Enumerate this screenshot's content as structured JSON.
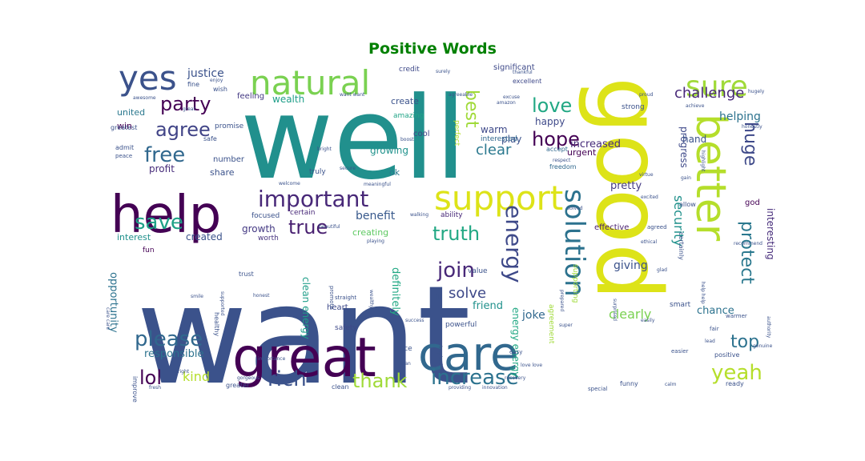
{
  "figure": {
    "title": "Positive Words"
  },
  "palette": {
    "title_color": "#008000",
    "background": "#ffffff"
  },
  "words": [
    {
      "text": "want",
      "color": "#3b528b"
    },
    {
      "text": "well",
      "color": "#21908d"
    },
    {
      "text": "good",
      "color": "#dde318"
    },
    {
      "text": "great",
      "color": "#440154"
    },
    {
      "text": "care",
      "color": "#31688e"
    },
    {
      "text": "help",
      "color": "#440154"
    },
    {
      "text": "better",
      "color": "#b5de2b"
    },
    {
      "text": "support",
      "color": "#dde318"
    },
    {
      "text": "natural",
      "color": "#7ad151"
    },
    {
      "text": "yes",
      "color": "#3b528b"
    },
    {
      "text": "important",
      "color": "#482878"
    },
    {
      "text": "solution",
      "color": "#2c728e"
    },
    {
      "text": "sure",
      "color": "#a0da39"
    },
    {
      "text": "energy",
      "color": "#3e4989"
    },
    {
      "text": "increase",
      "color": "#2c728e"
    },
    {
      "text": "rich",
      "color": "#3b528b"
    },
    {
      "text": "yeah",
      "color": "#b5de2b"
    },
    {
      "text": "thank",
      "color": "#a0da39"
    },
    {
      "text": "truth",
      "color": "#22a884"
    },
    {
      "text": "please",
      "color": "#31688e"
    },
    {
      "text": "join",
      "color": "#482878"
    },
    {
      "text": "save",
      "color": "#1fa187"
    },
    {
      "text": "free",
      "color": "#31688e"
    },
    {
      "text": "party",
      "color": "#440154"
    },
    {
      "text": "agree",
      "color": "#414487"
    },
    {
      "text": "love",
      "color": "#22a884"
    },
    {
      "text": "hope",
      "color": "#440154"
    },
    {
      "text": "huge",
      "color": "#3e4989"
    },
    {
      "text": "protect",
      "color": "#2a788e"
    },
    {
      "text": "best",
      "color": "#a0da39"
    },
    {
      "text": "lol",
      "color": "#440154"
    },
    {
      "text": "top",
      "color": "#2c728e"
    },
    {
      "text": "solve",
      "color": "#3e4989"
    },
    {
      "text": "true",
      "color": "#481f70"
    },
    {
      "text": "security",
      "color": "#21918c"
    },
    {
      "text": "clear",
      "color": "#2a788e"
    },
    {
      "text": "challenge",
      "color": "#482878"
    },
    {
      "text": "kind",
      "color": "#b5de2b"
    },
    {
      "text": "joke",
      "color": "#31688e"
    },
    {
      "text": "justice",
      "color": "#3b528b"
    },
    {
      "text": "responsible",
      "color": "#2c728e"
    },
    {
      "text": "opportunity",
      "color": "#2c728e"
    },
    {
      "text": "interesting",
      "color": "#472d7b"
    },
    {
      "text": "helping",
      "color": "#2c728e"
    },
    {
      "text": "progress",
      "color": "#3e4989"
    },
    {
      "text": "growing",
      "color": "#20928c"
    },
    {
      "text": "benefit",
      "color": "#38598c"
    },
    {
      "text": "giving",
      "color": "#3b528b"
    },
    {
      "text": "clearly",
      "color": "#7ad151"
    },
    {
      "text": "definitely",
      "color": "#22a884"
    },
    {
      "text": "effective",
      "color": "#481f70"
    },
    {
      "text": "increased",
      "color": "#472c7a"
    },
    {
      "text": "chance",
      "color": "#2c728e"
    },
    {
      "text": "created",
      "color": "#3b528b"
    },
    {
      "text": "growth",
      "color": "#443983"
    },
    {
      "text": "creating",
      "color": "#5ec962"
    },
    {
      "text": "pretty",
      "color": "#443a83"
    },
    {
      "text": "friend",
      "color": "#21918c"
    },
    {
      "text": "warm",
      "color": "#3e4989"
    },
    {
      "text": "play",
      "color": "#3b528b"
    },
    {
      "text": "happy",
      "color": "#3e4989"
    },
    {
      "text": "wealth",
      "color": "#1f9e89"
    },
    {
      "text": "create",
      "color": "#3b528b"
    },
    {
      "text": "profit",
      "color": "#472c7a"
    },
    {
      "text": "share",
      "color": "#3b528b"
    },
    {
      "text": "number",
      "color": "#3b528b"
    },
    {
      "text": "interest",
      "color": "#21918c"
    },
    {
      "text": "united",
      "color": "#2a788e"
    },
    {
      "text": "win",
      "color": "#440154"
    },
    {
      "text": "clean energy",
      "color": "#1f9e89"
    },
    {
      "text": "energy energy",
      "color": "#22a884"
    },
    {
      "text": "urgent",
      "color": "#440154"
    },
    {
      "text": "god",
      "color": "#440154"
    },
    {
      "text": "hand",
      "color": "#3b528b"
    },
    {
      "text": "feeling",
      "color": "#443983"
    },
    {
      "text": "amazing",
      "color": "#20a486"
    },
    {
      "text": "cool",
      "color": "#414487"
    },
    {
      "text": "interested",
      "color": "#31688e"
    },
    {
      "text": "ability",
      "color": "#482878"
    },
    {
      "text": "ok",
      "color": "#2a788e"
    },
    {
      "text": "truly",
      "color": "#3b528b"
    },
    {
      "text": "focused",
      "color": "#3b528b"
    },
    {
      "text": "certain",
      "color": "#482878"
    },
    {
      "text": "worth",
      "color": "#46337f"
    },
    {
      "text": "fun",
      "color": "#440154"
    },
    {
      "text": "credit",
      "color": "#3e4989"
    },
    {
      "text": "significant",
      "color": "#3e4989"
    },
    {
      "text": "excellent",
      "color": "#3e4989"
    },
    {
      "text": "perfect",
      "color": "#b5de2b"
    },
    {
      "text": "strong",
      "color": "#3b528b"
    },
    {
      "text": "freedom",
      "color": "#31688e"
    },
    {
      "text": "accept",
      "color": "#31688e"
    },
    {
      "text": "allow",
      "color": "#3b528b"
    },
    {
      "text": "smart",
      "color": "#3b528b"
    },
    {
      "text": "heart",
      "color": "#3e4989"
    },
    {
      "text": "safety",
      "color": "#3e4989"
    },
    {
      "text": "powerful",
      "color": "#3b528b"
    },
    {
      "text": "nice",
      "color": "#3b528b"
    },
    {
      "text": "agreed",
      "color": "#3b528b"
    },
    {
      "text": "value",
      "color": "#3b528b"
    },
    {
      "text": "promise",
      "color": "#3b528b"
    },
    {
      "text": "admit",
      "color": "#3b528b"
    },
    {
      "text": "peace",
      "color": "#3b528b"
    },
    {
      "text": "greatest",
      "color": "#3b528b"
    },
    {
      "text": "safe",
      "color": "#3b528b"
    },
    {
      "text": "fine",
      "color": "#3b528b"
    },
    {
      "text": "wish",
      "color": "#3b528b"
    },
    {
      "text": "supporting",
      "color": "#a0da39"
    },
    {
      "text": "agreement",
      "color": "#a0da39"
    },
    {
      "text": "certainly",
      "color": "#3b528b"
    },
    {
      "text": "healthy",
      "color": "#3b528b"
    },
    {
      "text": "improve",
      "color": "#3b528b"
    },
    {
      "text": "trust",
      "color": "#3b528b"
    },
    {
      "text": "funny",
      "color": "#3b528b"
    },
    {
      "text": "special",
      "color": "#3b528b"
    },
    {
      "text": "ready",
      "color": "#3b528b"
    },
    {
      "text": "positive",
      "color": "#3b528b"
    },
    {
      "text": "easier",
      "color": "#3b528b"
    },
    {
      "text": "fair",
      "color": "#3b528b"
    },
    {
      "text": "warmer",
      "color": "#3b528b"
    },
    {
      "text": "fit",
      "color": "#3b528b"
    },
    {
      "text": "clean",
      "color": "#3b528b"
    },
    {
      "text": "greater",
      "color": "#3b528b"
    },
    {
      "text": "straight",
      "color": "#3b528b"
    },
    {
      "text": "promote",
      "color": "#3b528b"
    },
    {
      "text": "welcome",
      "color": "#3b528b"
    },
    {
      "text": "beautiful",
      "color": "#3b528b"
    },
    {
      "text": "wealthy",
      "color": "#3b528b"
    },
    {
      "text": "easy",
      "color": "#3b528b"
    },
    {
      "text": "glad",
      "color": "#3b528b"
    },
    {
      "text": "surprised",
      "color": "#3b528b"
    },
    {
      "text": "honestly",
      "color": "#3b528b"
    },
    {
      "text": "authority",
      "color": "#3b528b"
    },
    {
      "text": "excited",
      "color": "#3b528b"
    },
    {
      "text": "virtue",
      "color": "#3b528b"
    },
    {
      "text": "gain",
      "color": "#3b528b"
    },
    {
      "text": "honest",
      "color": "#3b528b"
    },
    {
      "text": "supported",
      "color": "#3b528b"
    },
    {
      "text": "prepared",
      "color": "#3b528b"
    },
    {
      "text": "lean",
      "color": "#3b528b"
    },
    {
      "text": "easily",
      "color": "#3b528b"
    },
    {
      "text": "proud",
      "color": "#3b528b"
    },
    {
      "text": "surely",
      "color": "#3b528b"
    },
    {
      "text": "excuse",
      "color": "#3b528b"
    },
    {
      "text": "enjoy",
      "color": "#3b528b"
    },
    {
      "text": "achieve",
      "color": "#3b528b"
    },
    {
      "text": "respect",
      "color": "#3b528b"
    },
    {
      "text": "secure",
      "color": "#3b528b"
    },
    {
      "text": "meaningful",
      "color": "#3b528b"
    },
    {
      "text": "playing",
      "color": "#3b528b"
    },
    {
      "text": "recovery",
      "color": "#3b528b"
    },
    {
      "text": "importance",
      "color": "#3b528b"
    },
    {
      "text": "providing",
      "color": "#3b528b"
    },
    {
      "text": "innovation",
      "color": "#3b528b"
    },
    {
      "text": "inspired",
      "color": "#3b528b"
    },
    {
      "text": "super",
      "color": "#3b528b"
    },
    {
      "text": "help help",
      "color": "#3b528b"
    },
    {
      "text": "solved",
      "color": "#3b528b"
    },
    {
      "text": "highlight",
      "color": "#3b528b"
    },
    {
      "text": "awesome",
      "color": "#3b528b"
    },
    {
      "text": "care care",
      "color": "#3b528b"
    },
    {
      "text": "want want",
      "color": "#3b528b"
    },
    {
      "text": "amazon",
      "color": "#3b528b"
    },
    {
      "text": "walking",
      "color": "#3b528b"
    },
    {
      "text": "gorgeous",
      "color": "#3b528b"
    },
    {
      "text": "boost",
      "color": "#3b528b"
    },
    {
      "text": "bright",
      "color": "#3b528b"
    },
    {
      "text": "great",
      "color": "#3b528b"
    },
    {
      "text": "right",
      "color": "#3b528b"
    },
    {
      "text": "recommend",
      "color": "#3b528b"
    },
    {
      "text": "smile",
      "color": "#3b528b"
    },
    {
      "text": "success",
      "color": "#3b528b"
    },
    {
      "text": "hugely",
      "color": "#3b528b"
    },
    {
      "text": "thankful",
      "color": "#3b528b"
    },
    {
      "text": "agreeable",
      "color": "#3b528b"
    },
    {
      "text": "ethical",
      "color": "#3b528b"
    },
    {
      "text": "lead",
      "color": "#3b528b"
    },
    {
      "text": "love love",
      "color": "#3b528b"
    },
    {
      "text": "calm",
      "color": "#3b528b"
    },
    {
      "text": "fresh",
      "color": "#3b528b"
    },
    {
      "text": "genuine",
      "color": "#3b528b"
    },
    {
      "text": "positive",
      "color": "#3b528b"
    },
    {
      "text": "gift",
      "color": "#3b528b"
    }
  ]
}
